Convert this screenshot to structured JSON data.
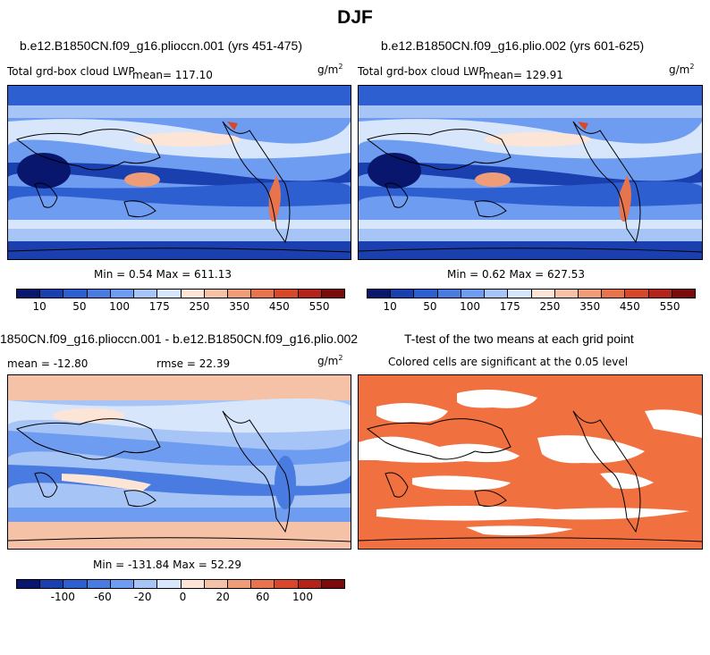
{
  "title": "DJF",
  "panels": {
    "top_left": {
      "case": "b.e12.B1850CN.f09_g16.plioccn.001 (yrs 451-475)",
      "field": "Total grd-box cloud LWP",
      "mean": "mean= 117.10",
      "units": "g/m",
      "units_exp": "2",
      "stats": "Min =   0.54 Max = 611.13"
    },
    "top_right": {
      "case": "b.e12.B1850CN.f09_g16.plio.002 (yrs 601-625)",
      "field": "Total grd-box cloud LWP",
      "mean": "mean= 129.91",
      "units": "g/m",
      "units_exp": "2",
      "stats": "Min =   0.62 Max = 627.53"
    },
    "bottom_left": {
      "case": "1850CN.f09_g16.plioccn.001 - b.e12.B1850CN.f09_g16.plio.002",
      "mean": "mean = -12.80",
      "rmse": "rmse =  22.39",
      "units": "g/m",
      "units_exp": "2",
      "stats": "Min = -131.84 Max =  52.29"
    },
    "bottom_right": {
      "case": "T-test of the two means at each grid point",
      "note": "Colored cells are significant at the 0.05 level"
    }
  },
  "colorbars": {
    "abs_colors": [
      "#08166e",
      "#1a3fae",
      "#2d5fd0",
      "#4a7be0",
      "#6e9cf0",
      "#a6c4f5",
      "#d8e6fb",
      "#fce5d6",
      "#f6c2a7",
      "#ef9d78",
      "#e8744d",
      "#d9472a",
      "#b4231a",
      "#7b0b0b"
    ],
    "abs_ticks": [
      "10",
      "50",
      "100",
      "175",
      "250",
      "350",
      "450",
      "550"
    ],
    "diff_colors": [
      "#08166e",
      "#1a3fae",
      "#2d5fd0",
      "#4a7be0",
      "#6e9cf0",
      "#a6c4f5",
      "#d8e6fb",
      "#fce5d6",
      "#f6c2a7",
      "#ef9d78",
      "#e8744d",
      "#d9472a",
      "#b4231a",
      "#7b0b0b"
    ],
    "diff_ticks": [
      "-100",
      "-60",
      "-20",
      "0",
      "20",
      "60",
      "100"
    ]
  },
  "colors": {
    "ttest_fill": "#f07040",
    "ocean_blue": "#4a7be0"
  }
}
